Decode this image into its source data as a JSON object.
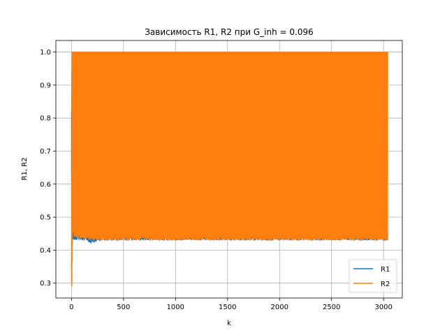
{
  "chart_data": {
    "type": "line",
    "title": "Зависимость R1, R2 при G_inh = 0.096",
    "xlabel": "k",
    "ylabel": "R1, R2",
    "xlim": [
      -150,
      3180
    ],
    "ylim": [
      0.255,
      1.035
    ],
    "xticks": [
      0,
      500,
      1000,
      1500,
      2000,
      2500,
      3000
    ],
    "yticks": [
      0.3,
      0.4,
      0.5,
      0.6,
      0.7,
      0.8,
      0.9,
      1.0
    ],
    "xtick_labels": [
      "0",
      "500",
      "1000",
      "1500",
      "2000",
      "2500",
      "3000"
    ],
    "ytick_labels": [
      "0.3",
      "0.4",
      "0.5",
      "0.6",
      "0.7",
      "0.8",
      "0.9",
      "1.0"
    ],
    "grid": true,
    "legend": "lower-right",
    "k_range": [
      0,
      3040
    ],
    "series": [
      {
        "name": "R1",
        "color": "#1f77b4",
        "upper": [
          [
            0,
            0.82
          ],
          [
            5,
            0.98
          ],
          [
            15,
            0.89
          ],
          [
            30,
            0.88
          ],
          [
            50,
            0.72
          ],
          [
            70,
            0.6
          ],
          [
            90,
            0.52
          ],
          [
            120,
            0.46
          ],
          [
            180,
            0.44
          ],
          [
            300,
            0.45
          ],
          [
            380,
            0.55
          ],
          [
            430,
            0.68
          ],
          [
            470,
            0.75
          ],
          [
            490,
            0.78
          ],
          [
            510,
            0.72
          ],
          [
            550,
            0.55
          ],
          [
            600,
            0.46
          ],
          [
            700,
            0.45
          ],
          [
            850,
            0.46
          ],
          [
            920,
            0.52
          ],
          [
            950,
            0.6
          ],
          [
            975,
            0.48
          ],
          [
            1050,
            0.45
          ],
          [
            1500,
            0.46
          ],
          [
            2000,
            0.46
          ],
          [
            2500,
            0.46
          ],
          [
            3040,
            0.46
          ]
        ],
        "lower": [
          [
            0,
            0.3
          ],
          [
            10,
            0.43
          ],
          [
            3040,
            0.43
          ]
        ]
      },
      {
        "name": "R2",
        "color": "#ff7f0e",
        "upper": [
          [
            0,
            0.38
          ],
          [
            5,
            1.0
          ],
          [
            3040,
            1.0
          ]
        ],
        "lower": [
          [
            0,
            0.3
          ],
          [
            5,
            0.29
          ],
          [
            10,
            0.45
          ],
          [
            30,
            0.44
          ],
          [
            200,
            0.43
          ],
          [
            3040,
            0.43
          ]
        ]
      }
    ]
  }
}
